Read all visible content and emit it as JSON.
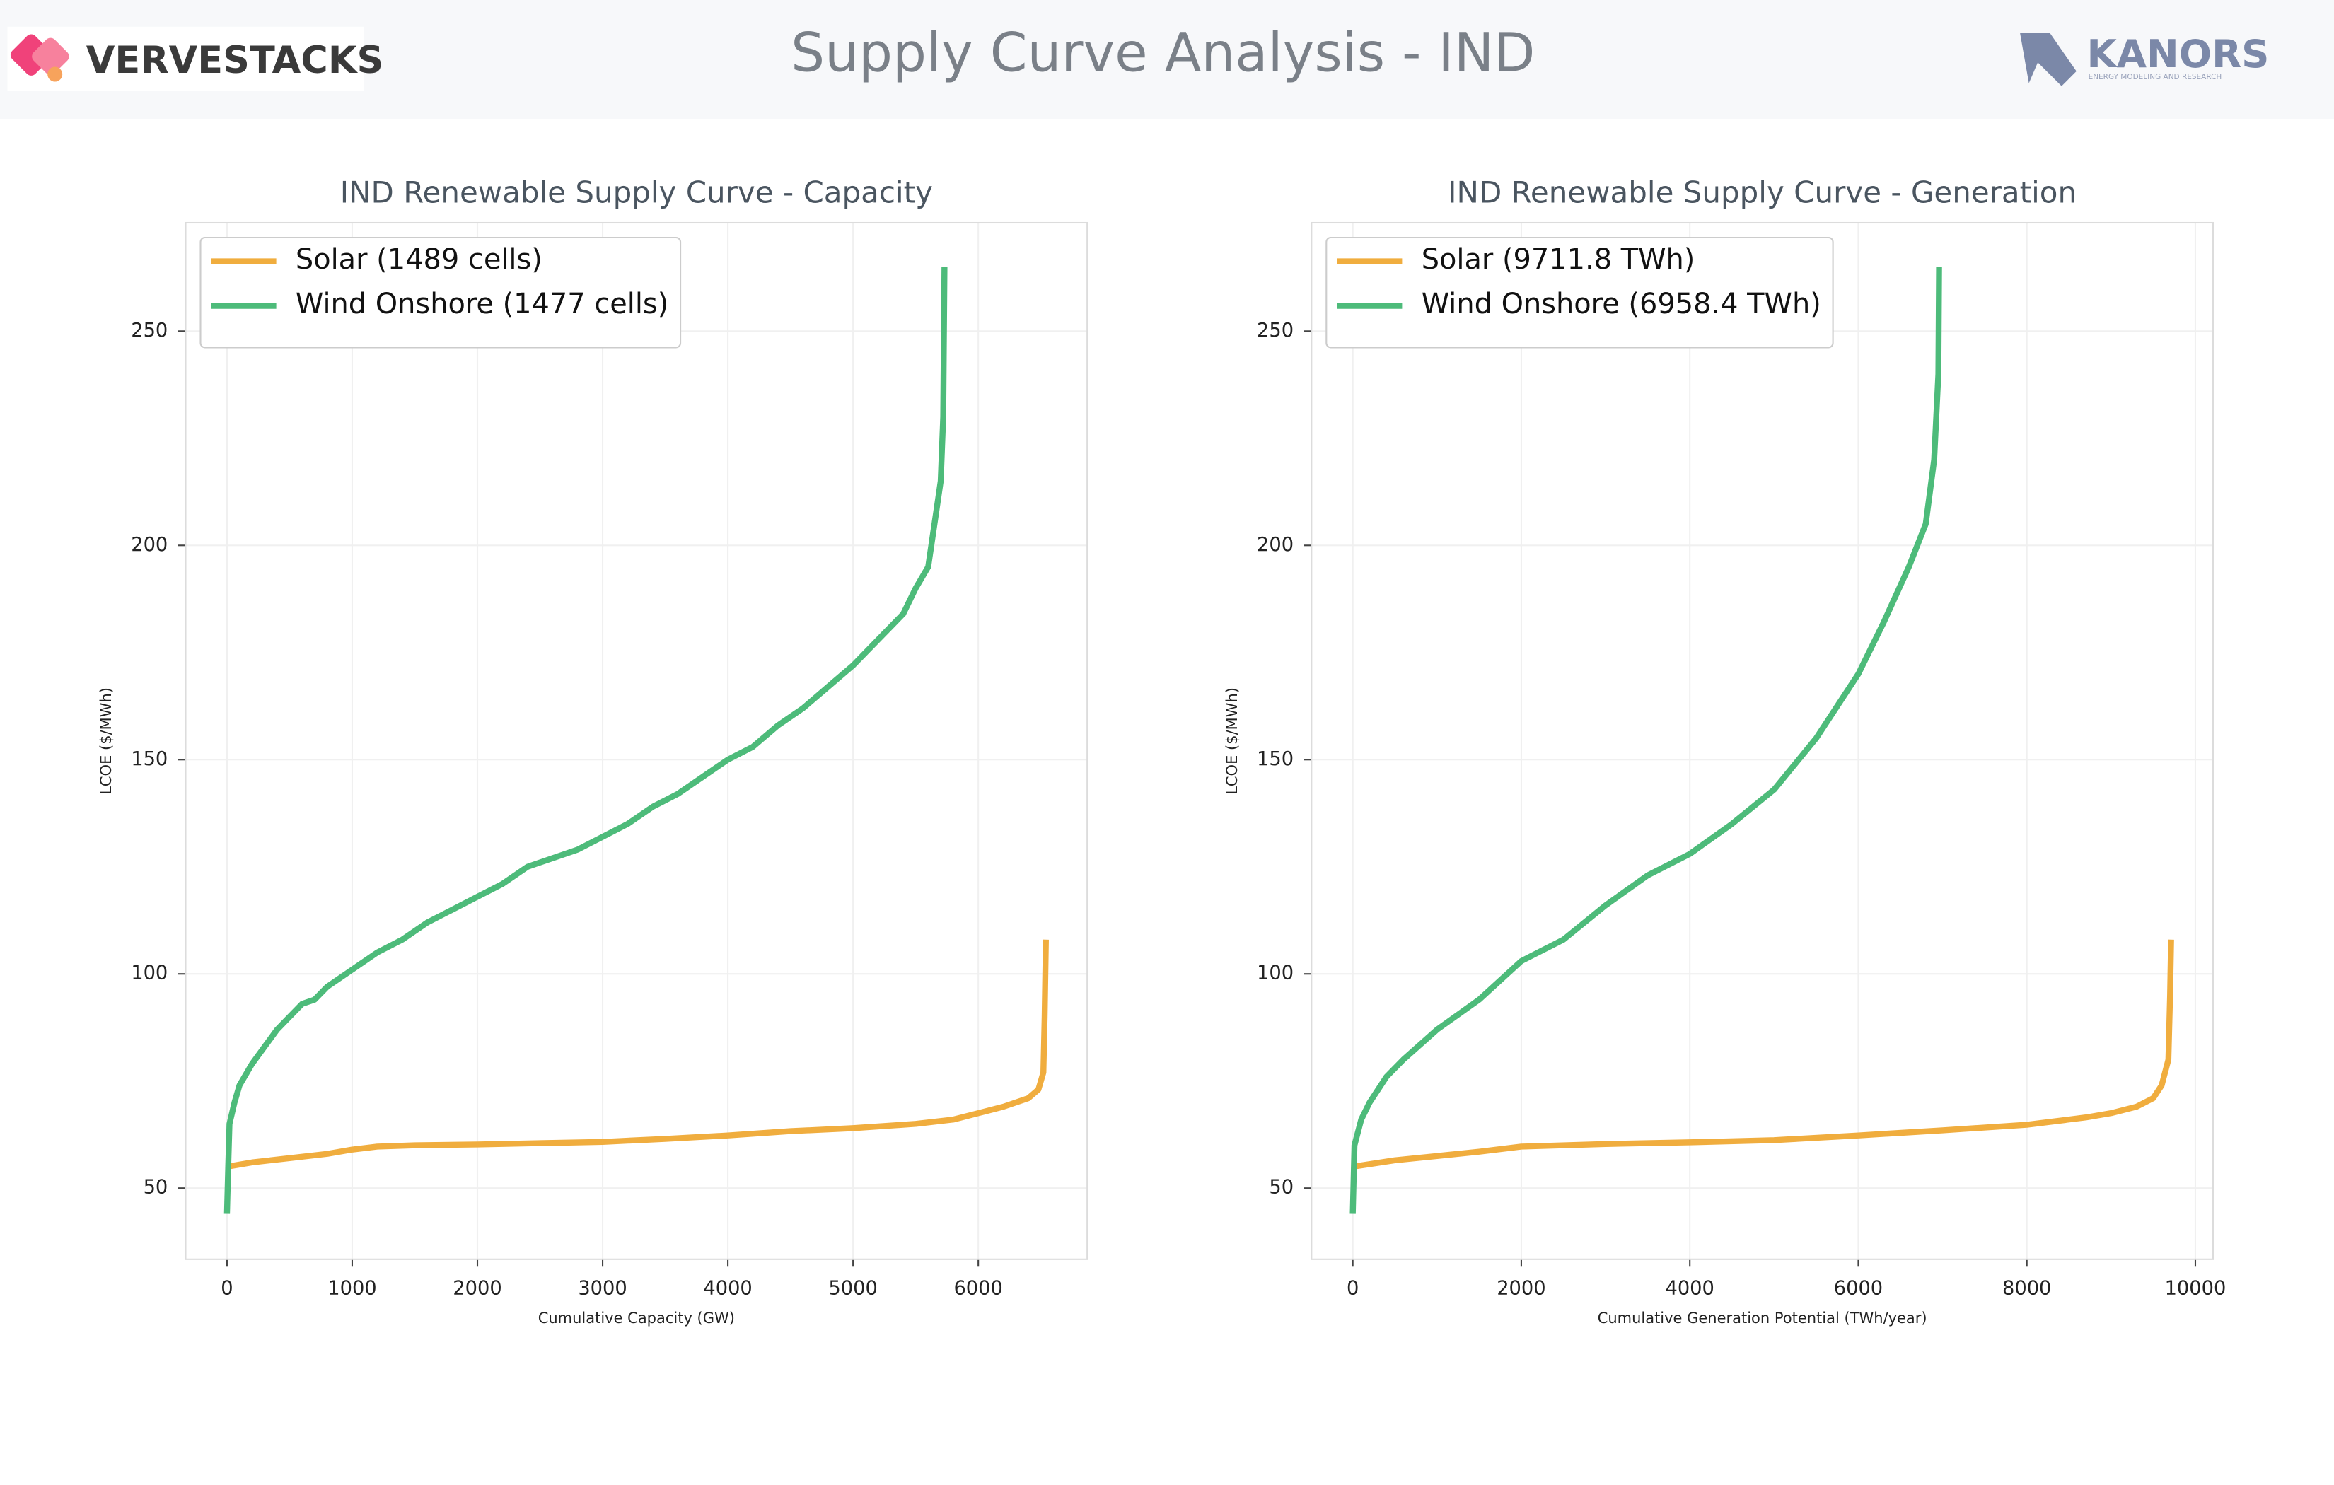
{
  "header": {
    "title": "Supply Curve Analysis - IND",
    "left_logo": "VERVESTACKS",
    "right_logo": "KANORS",
    "right_logo_tagline": "ENERGY MODELING AND RESEARCH"
  },
  "chart_data": [
    {
      "type": "line",
      "title": "IND Renewable Supply Curve - Capacity",
      "x_label": "Cumulative Capacity (GW)",
      "y_label": "LCOE ($/MWh)",
      "xlim": [
        -330,
        6870
      ],
      "ylim": [
        33.4,
        275.3
      ],
      "xticks": [
        0,
        1000,
        2000,
        3000,
        4000,
        5000,
        6000
      ],
      "yticks": [
        50,
        100,
        150,
        200,
        250
      ],
      "grid": true,
      "legend": "upper left",
      "series": [
        {
          "name": "Solar (1489 cells)",
          "color": "#f0ad3e",
          "x": [
            0,
            200,
            500,
            800,
            1000,
            1200,
            1500,
            2000,
            3000,
            3500,
            4000,
            4500,
            5000,
            5500,
            5800,
            6000,
            6200,
            6400,
            6480,
            6520,
            6530,
            6540
          ],
          "values": [
            55,
            56,
            57,
            58,
            59,
            59.7,
            60,
            60.2,
            60.8,
            61.5,
            62.3,
            63.3,
            64,
            65,
            66,
            67.5,
            69,
            71,
            73,
            77,
            90,
            108
          ]
        },
        {
          "name": "Wind Onshore (1477 cells)",
          "color": "#4dbb7a",
          "x": [
            0,
            10,
            20,
            60,
            100,
            200,
            300,
            400,
            500,
            600,
            700,
            800,
            1000,
            1200,
            1400,
            1600,
            1800,
            2000,
            2200,
            2400,
            2600,
            2800,
            3000,
            3200,
            3400,
            3600,
            3800,
            4000,
            4200,
            4400,
            4600,
            4800,
            5000,
            5200,
            5400,
            5500,
            5600,
            5650,
            5700,
            5720,
            5730
          ],
          "values": [
            44,
            55,
            65,
            70,
            74,
            79,
            83,
            87,
            90,
            93,
            94,
            97,
            101,
            105,
            108,
            112,
            115,
            118,
            121,
            125,
            127,
            129,
            132,
            135,
            139,
            142,
            146,
            150,
            153,
            158,
            162,
            167,
            172,
            178,
            184,
            190,
            195,
            205,
            215,
            230,
            265
          ]
        }
      ]
    },
    {
      "type": "line",
      "title": "IND Renewable Supply Curve - Generation",
      "x_label": "Cumulative Generation Potential (TWh/year)",
      "y_label": "LCOE ($/MWh)",
      "xlim": [
        -490,
        10210
      ],
      "ylim": [
        33.4,
        275.3
      ],
      "xticks": [
        0,
        2000,
        4000,
        6000,
        8000,
        10000
      ],
      "yticks": [
        50,
        100,
        150,
        200,
        250
      ],
      "grid": true,
      "legend": "upper left",
      "series": [
        {
          "name": "Solar (9711.8 TWh)",
          "color": "#f0ad3e",
          "x": [
            0,
            500,
            1000,
            1500,
            2000,
            3000,
            4000,
            5000,
            6000,
            7000,
            8000,
            8700,
            9000,
            9300,
            9500,
            9600,
            9680,
            9700,
            9712
          ],
          "values": [
            55,
            56.5,
            57.5,
            58.5,
            59.7,
            60.3,
            60.7,
            61.2,
            62.3,
            63.5,
            64.8,
            66.5,
            67.5,
            69,
            71,
            74,
            80,
            95,
            108
          ]
        },
        {
          "name": "Wind Onshore (6958.4 TWh)",
          "color": "#4dbb7a",
          "x": [
            0,
            20,
            100,
            200,
            400,
            600,
            1000,
            1500,
            2000,
            2500,
            3000,
            3500,
            4000,
            4500,
            5000,
            5500,
            6000,
            6300,
            6600,
            6800,
            6900,
            6950,
            6958
          ],
          "values": [
            44,
            60,
            66,
            70,
            76,
            80,
            87,
            94,
            103,
            108,
            116,
            123,
            128,
            135,
            143,
            155,
            170,
            182,
            195,
            205,
            220,
            240,
            265
          ]
        }
      ]
    }
  ]
}
